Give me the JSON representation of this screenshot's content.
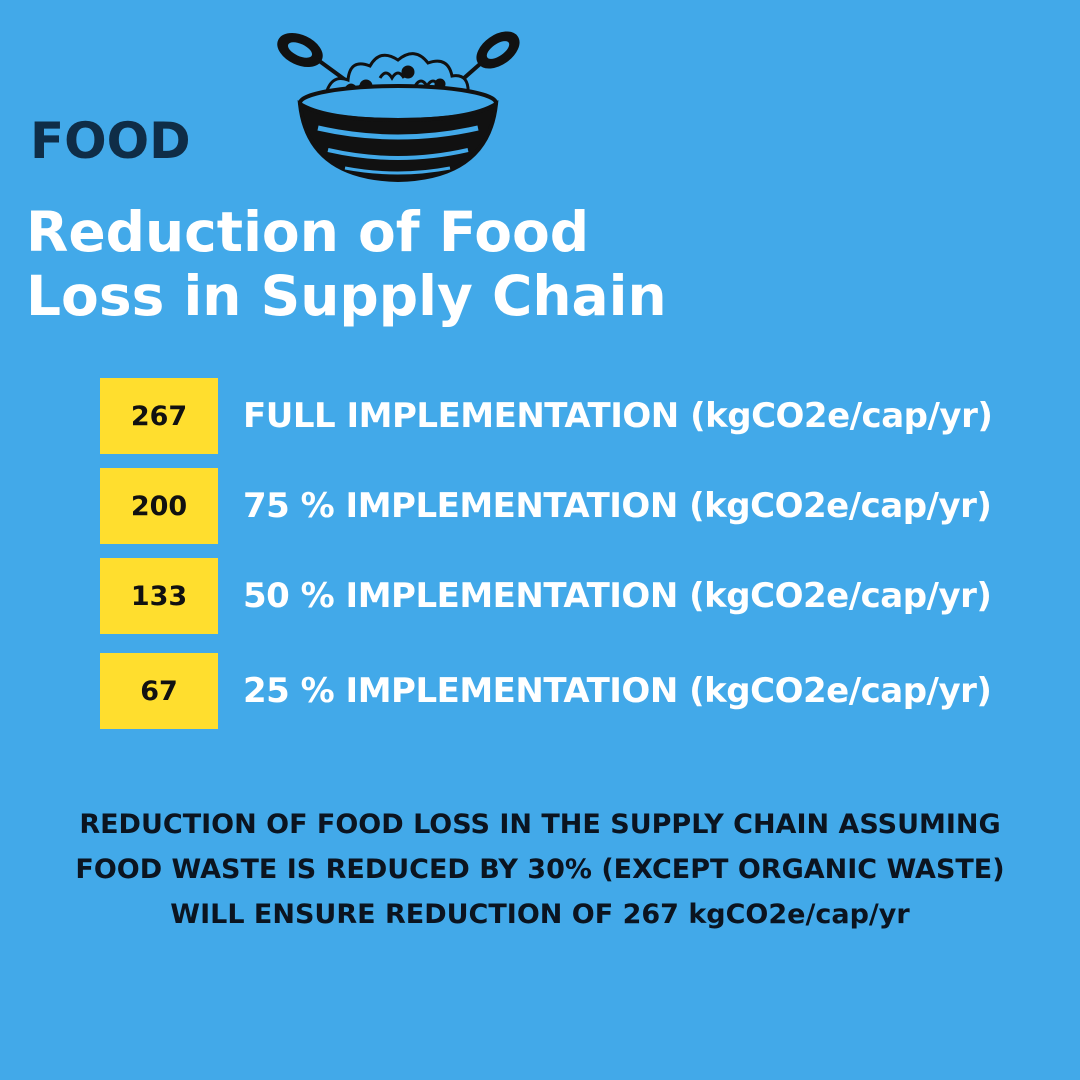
{
  "header": {
    "category": "FOOD",
    "icon": "salad-bowl-icon",
    "title_lines": [
      "Reduction of Food",
      "Loss in Supply Chain"
    ]
  },
  "rows": [
    {
      "value": "267",
      "label": "FULL IMPLEMENTATION (kgCO2e/cap/yr)"
    },
    {
      "value": "200",
      "label": "75 % IMPLEMENTATION (kgCO2e/cap/yr)"
    },
    {
      "value": "133",
      "label": "50 % IMPLEMENTATION (kgCO2e/cap/yr)"
    },
    {
      "value": "67",
      "label": "25 % IMPLEMENTATION (kgCO2e/cap/yr)"
    }
  ],
  "summary": "REDUCTION OF FOOD LOSS IN THE SUPPLY CHAIN ASSUMING FOOD WASTE IS REDUCED BY 30% (EXCEPT ORGANIC WASTE) WILL ENSURE REDUCTION OF 267 kgCO2e/cap/yr",
  "colors": {
    "background": "#42a9e9",
    "badge": "#ffde2e",
    "category_text": "#0f2d47",
    "title_text": "#ffffff",
    "summary_text": "#0b1420"
  }
}
